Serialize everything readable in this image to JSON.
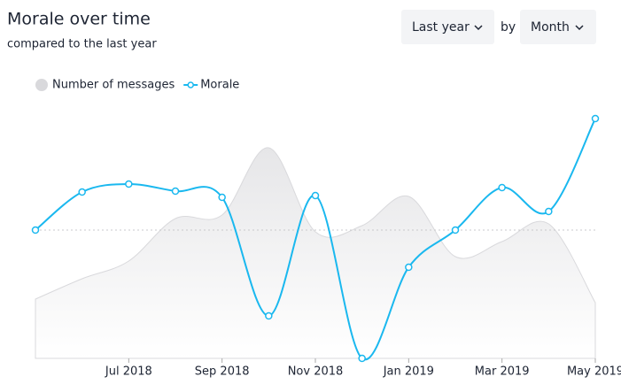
{
  "controls": {
    "period": "Last year",
    "by": "by",
    "group": "Month"
  },
  "chart_data": {
    "type": "line",
    "title": "Morale over time",
    "subtitle": "compared to the last year",
    "categories": [
      null,
      null,
      "Jul 2018",
      null,
      "Sep 2018",
      null,
      "Nov 2018",
      null,
      "Jan 2019",
      null,
      "Mar 2019",
      null,
      "May 2019"
    ],
    "series": [
      {
        "name": "Number of messages",
        "color": "#d9d9dc",
        "kind": "area",
        "values": [
          67,
          90,
          110,
          158,
          162,
          238,
          143,
          150,
          183,
          115,
          132,
          152,
          63
        ]
      },
      {
        "name": "Morale",
        "color": "#1ab8ef",
        "kind": "line",
        "values": [
          145,
          188,
          197,
          189,
          182,
          48,
          184,
          0,
          103,
          145,
          193,
          166,
          271
        ]
      }
    ],
    "ylim": [
      0,
      290
    ],
    "reference_line": 145,
    "legend": "top-left"
  }
}
